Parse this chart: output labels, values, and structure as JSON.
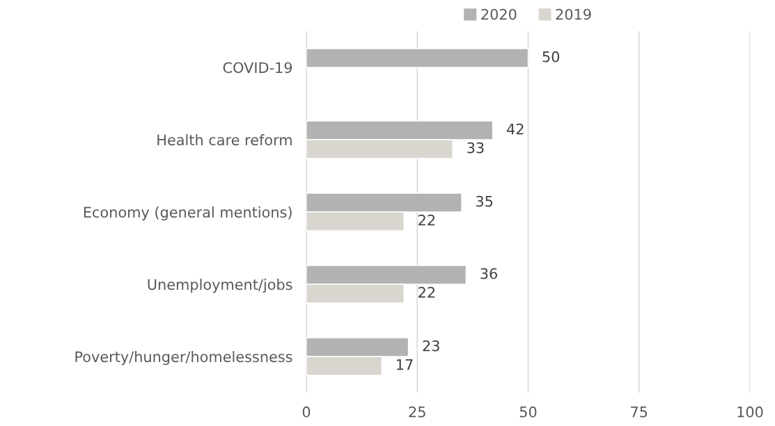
{
  "chart_data": {
    "type": "bar",
    "orientation": "horizontal",
    "categories": [
      "COVID-19",
      "Health care reform",
      "Economy (general mentions)",
      "Unemployment/jobs",
      "Poverty/hunger/homelessness"
    ],
    "series": [
      {
        "name": "2020",
        "color": "#b2b2b2",
        "values": [
          50,
          42,
          35,
          36,
          23
        ]
      },
      {
        "name": "2019",
        "color": "#d9d5cf",
        "values": [
          null,
          33,
          22,
          22,
          17
        ]
      }
    ],
    "xlim": [
      0,
      100
    ],
    "xticks": [
      0,
      25,
      50,
      75,
      100
    ],
    "grid": "x",
    "legend": "top",
    "data_labels": true
  }
}
